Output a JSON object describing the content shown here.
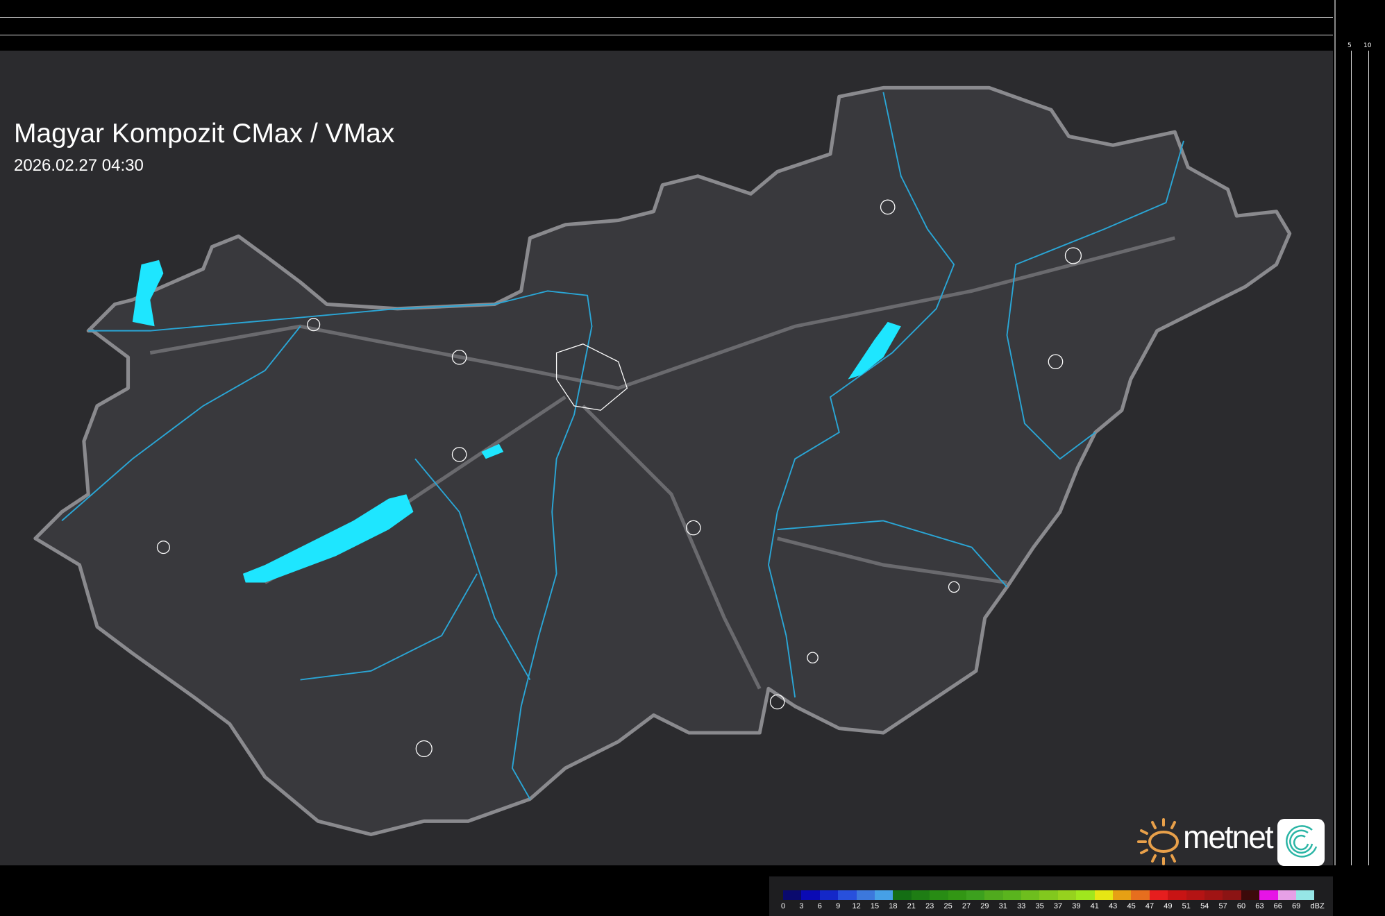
{
  "title": "Magyar Kompozit CMax / VMax",
  "timestamp": "2026.02.27 04:30",
  "top_axis": {
    "labels": [
      "10",
      "5"
    ]
  },
  "right_axis": {
    "labels": [
      "5",
      "10"
    ]
  },
  "logo": {
    "brand": "metnet"
  },
  "colors": {
    "background": "#2b2b2e",
    "border": "#8a8a8e",
    "rivers": "#2aa6d6",
    "lakes": "#1ee6ff",
    "cities": "#ffffff"
  },
  "legend": {
    "unit": "dBZ",
    "ticks": [
      "0",
      "3",
      "6",
      "9",
      "12",
      "15",
      "18",
      "21",
      "23",
      "25",
      "27",
      "29",
      "31",
      "33",
      "35",
      "37",
      "39",
      "41",
      "43",
      "45",
      "47",
      "49",
      "51",
      "54",
      "57",
      "60",
      "63",
      "66",
      "69"
    ],
    "colors": [
      "#0a0a6e",
      "#0a0ab4",
      "#1428c8",
      "#2850dc",
      "#3c78dc",
      "#46a0e6",
      "#146e14",
      "#1e7d14",
      "#288c14",
      "#329614",
      "#3ca01e",
      "#50aa1e",
      "#5ab41e",
      "#6ebe1e",
      "#82c81e",
      "#96d21e",
      "#a0e61e",
      "#e6e614",
      "#e6a014",
      "#e66e1e",
      "#e61e1e",
      "#c81414",
      "#b41414",
      "#a01414",
      "#8c1414",
      "#3c0a0a",
      "#e614e6",
      "#e6a0e6",
      "#96e6e6"
    ]
  }
}
